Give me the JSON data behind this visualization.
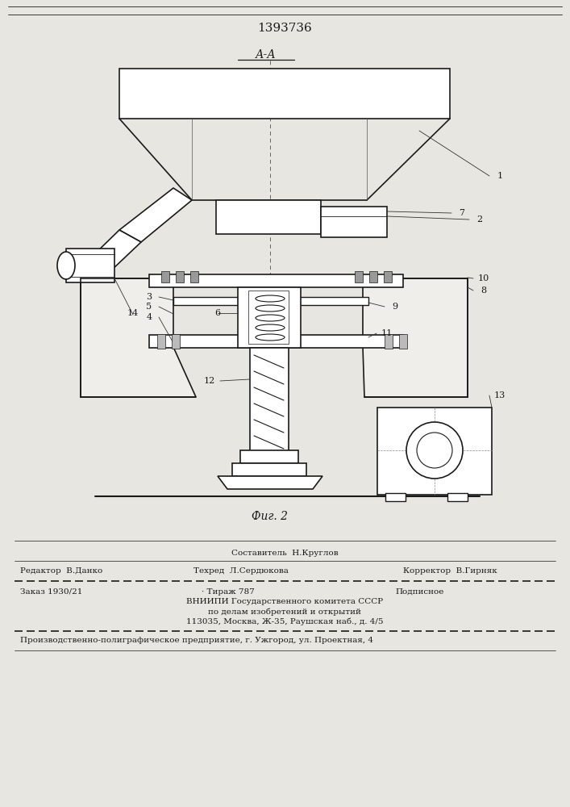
{
  "patent_number": "1393736",
  "bg_color": "#e8e6e0",
  "lc": "#1a1a1a",
  "footer": {
    "l1c": "Составитель  Н.Круглов",
    "l2l": "Редактор  В.Данко",
    "l2c": "Техред  Л.Сердюкова",
    "l2r": "Корректор  В.Гирняк",
    "l3l": "Заказ 1930/21",
    "l3c": "· Тираж 787",
    "l3r": "Подписное",
    "l4": "ВНИИПИ Государственного комитета СССР",
    "l5": "по делам изобретений и открытий",
    "l6": "113035, Москва, Ж-35, Раушская наб., д. 4/5",
    "l7": "Производственно-полиграфическое предприятие, г. Ужгород, ул. Проектная, 4"
  }
}
